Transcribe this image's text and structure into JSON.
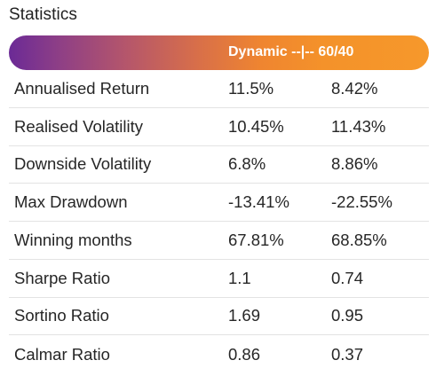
{
  "title": "Statistics",
  "header": {
    "label": "Dynamic --|-- 60/40"
  },
  "colors": {
    "gradient_start": "#6b2a96",
    "gradient_end": "#f6982b",
    "header_text": "#ffffff"
  },
  "rows": [
    {
      "label": "Annualised Return",
      "dynamic": "11.5%",
      "sixty_forty": "8.42%"
    },
    {
      "label": "Realised Volatility",
      "dynamic": "10.45%",
      "sixty_forty": "11.43%"
    },
    {
      "label": "Downside Volatility",
      "dynamic": "6.8%",
      "sixty_forty": "8.86%"
    },
    {
      "label": "Max Drawdown",
      "dynamic": "-13.41%",
      "sixty_forty": "-22.55%"
    },
    {
      "label": "Winning months",
      "dynamic": "67.81%",
      "sixty_forty": "68.85%"
    },
    {
      "label": "Sharpe Ratio",
      "dynamic": "1.1",
      "sixty_forty": "0.74"
    },
    {
      "label": "Sortino Ratio",
      "dynamic": "1.69",
      "sixty_forty": "0.95"
    },
    {
      "label": "Calmar Ratio",
      "dynamic": "0.86",
      "sixty_forty": "0.37"
    }
  ]
}
